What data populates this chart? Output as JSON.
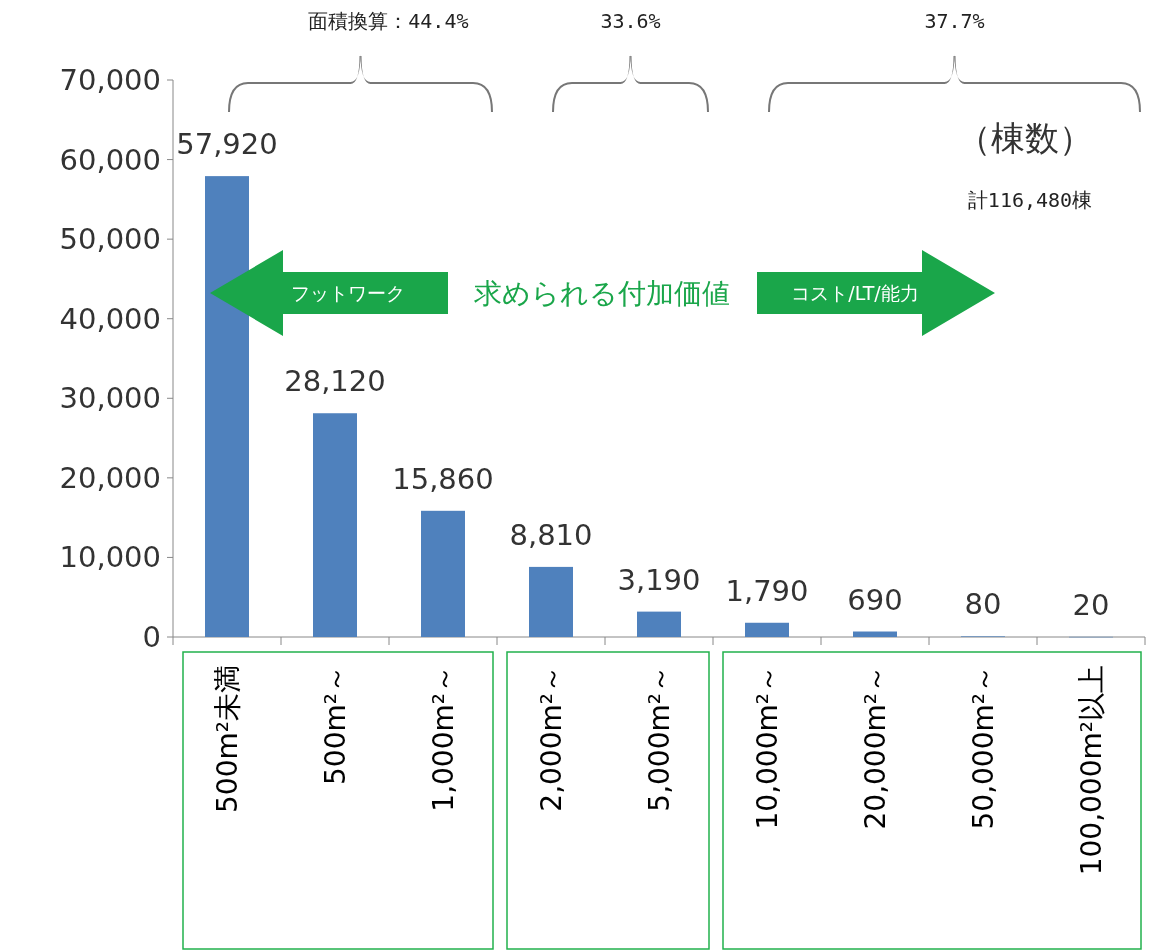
{
  "chart_data": {
    "type": "bar",
    "categories": [
      "500m²未満",
      "500m²～",
      "1,000m²～",
      "2,000m²～",
      "5,000m²～",
      "10,000m²～",
      "20,000m²～",
      "50,000m²～",
      "100,000m²以上"
    ],
    "values": [
      57920,
      28120,
      15860,
      8810,
      3190,
      1790,
      690,
      80,
      20
    ],
    "value_labels": [
      "57,920",
      "28,120",
      "15,860",
      "8,810",
      "3,190",
      "1,790",
      "690",
      "80",
      "20"
    ],
    "color": "#4f81bd",
    "ylim": [
      0,
      70000
    ],
    "yticks": [
      {
        "value": 0,
        "label": "0"
      },
      {
        "value": 10000,
        "label": "10,000"
      },
      {
        "value": 20000,
        "label": "20,000"
      },
      {
        "value": 30000,
        "label": "30,000"
      },
      {
        "value": 40000,
        "label": "40,000"
      },
      {
        "value": 50000,
        "label": "50,000"
      },
      {
        "value": 60000,
        "label": "60,000"
      },
      {
        "value": 70000,
        "label": "70,000"
      }
    ],
    "grid": false,
    "annotations": [
      "面積換算：44.4%",
      "33.6%",
      "37.7%",
      "（棟数）",
      "計116,480棟",
      "フットワーク",
      "求められる付加価値",
      "コスト/LT/能力"
    ]
  }
}
